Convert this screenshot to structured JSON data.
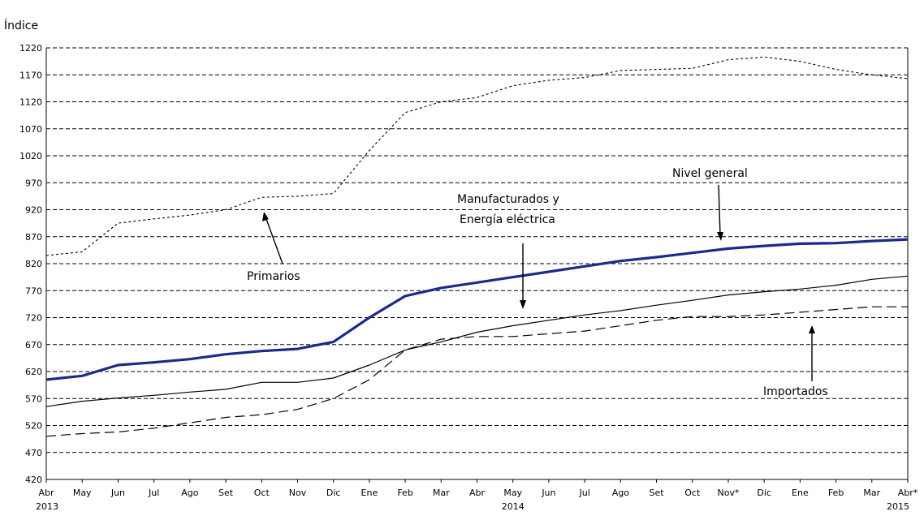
{
  "chart_data": {
    "type": "line",
    "ylabel": "Índice",
    "ylim": [
      420,
      1220
    ],
    "yticks": [
      420,
      470,
      520,
      570,
      620,
      670,
      720,
      770,
      820,
      870,
      920,
      970,
      1020,
      1070,
      1120,
      1170,
      1220
    ],
    "grid": "horizontal dashed",
    "categories": [
      "Abr",
      "May",
      "Jun",
      "Jul",
      "Ago",
      "Set",
      "Oct",
      "Nov",
      "Dic",
      "Ene",
      "Feb",
      "Mar",
      "Abr",
      "May",
      "Jun",
      "Jul",
      "Ago",
      "Set",
      "Oct",
      "Nov*",
      "Dic",
      "Ene",
      "Feb",
      "Mar",
      "Abr*"
    ],
    "year_labels": [
      {
        "index": 0,
        "label": "2013"
      },
      {
        "index": 13,
        "label": "2014"
      },
      {
        "index": 24,
        "label": "2015"
      }
    ],
    "series": [
      {
        "name": "Nivel general",
        "style": "thick-solid",
        "color": "#1c2a8c",
        "values": [
          605,
          612,
          632,
          637,
          643,
          652,
          658,
          662,
          675,
          720,
          760,
          775,
          785,
          795,
          805,
          815,
          825,
          832,
          840,
          848,
          853,
          857,
          858,
          862,
          865
        ]
      },
      {
        "name": "Manufacturados y Energía eléctrica",
        "style": "thin-solid",
        "color": "#000000",
        "values": [
          555,
          565,
          571,
          576,
          582,
          587,
          600,
          600,
          608,
          632,
          660,
          675,
          693,
          705,
          715,
          725,
          733,
          743,
          752,
          762,
          768,
          773,
          780,
          791,
          797
        ]
      },
      {
        "name": "Primarios",
        "style": "short-dash",
        "color": "#000000",
        "values": [
          835,
          842,
          895,
          903,
          910,
          920,
          943,
          945,
          950,
          1030,
          1100,
          1120,
          1128,
          1150,
          1160,
          1165,
          1178,
          1180,
          1182,
          1198,
          1203,
          1195,
          1180,
          1170,
          1163
        ]
      },
      {
        "name": "Importados",
        "style": "long-dash",
        "color": "#000000",
        "values": [
          500,
          505,
          508,
          515,
          525,
          535,
          540,
          550,
          570,
          605,
          660,
          680,
          685,
          685,
          690,
          695,
          705,
          715,
          722,
          722,
          725,
          730,
          735,
          740,
          740
        ]
      }
    ],
    "annotations": [
      {
        "text": "Nivel general",
        "series": "Nivel general"
      },
      {
        "lines": [
          "Manufacturados y",
          "Energía eléctrica"
        ],
        "series": "Manufacturados y Energía eléctrica"
      },
      {
        "text": "Primarios",
        "series": "Primarios"
      },
      {
        "text": "Importados",
        "series": "Importados"
      }
    ]
  }
}
